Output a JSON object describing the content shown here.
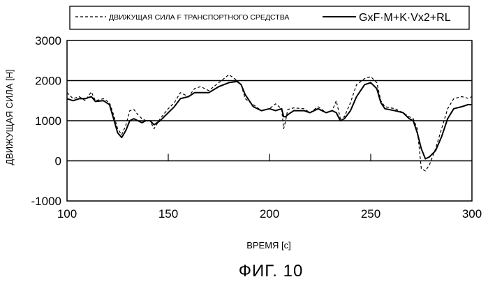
{
  "figure": {
    "caption": "ФИГ. 10"
  },
  "chart_data": {
    "type": "line",
    "xlabel": "ВРЕМЯ [с]",
    "ylabel": "ДВИЖУЩАЯ СИЛА [Н]",
    "xlim": [
      100,
      300
    ],
    "ylim": [
      -1000,
      3000
    ],
    "x_ticks": [
      "100",
      "150",
      "200",
      "250",
      "300"
    ],
    "y_ticks": [
      "3000",
      "2000",
      "1000",
      "0",
      "-1000"
    ],
    "grid_y": true,
    "legend_position": "top",
    "series": [
      {
        "name": "ДВИЖУЩАЯ СИЛА F ТРАНСПОРТНОГО СРЕДСТВА",
        "style": "dashed",
        "points": [
          [
            100,
            1700
          ],
          [
            103,
            1550
          ],
          [
            106,
            1600
          ],
          [
            109,
            1500
          ],
          [
            112,
            1720
          ],
          [
            114,
            1500
          ],
          [
            118,
            1550
          ],
          [
            121,
            1450
          ],
          [
            123,
            1150
          ],
          [
            125,
            800
          ],
          [
            127,
            650
          ],
          [
            129,
            880
          ],
          [
            131,
            1250
          ],
          [
            133,
            1280
          ],
          [
            135,
            1150
          ],
          [
            137,
            1050
          ],
          [
            139,
            1000
          ],
          [
            141,
            1000
          ],
          [
            143,
            800
          ],
          [
            146,
            1050
          ],
          [
            150,
            1300
          ],
          [
            153,
            1450
          ],
          [
            156,
            1700
          ],
          [
            160,
            1600
          ],
          [
            163,
            1800
          ],
          [
            166,
            1850
          ],
          [
            170,
            1750
          ],
          [
            175,
            1950
          ],
          [
            180,
            2150
          ],
          [
            184,
            2000
          ],
          [
            186,
            1900
          ],
          [
            188,
            1550
          ],
          [
            192,
            1400
          ],
          [
            196,
            1250
          ],
          [
            200,
            1300
          ],
          [
            203,
            1420
          ],
          [
            206,
            1300
          ],
          [
            207,
            800
          ],
          [
            208,
            1000
          ],
          [
            209,
            1280
          ],
          [
            212,
            1320
          ],
          [
            217,
            1300
          ],
          [
            220,
            1200
          ],
          [
            224,
            1350
          ],
          [
            228,
            1200
          ],
          [
            231,
            1250
          ],
          [
            233,
            1500
          ],
          [
            235,
            1050
          ],
          [
            237,
            1100
          ],
          [
            240,
            1450
          ],
          [
            243,
            1900
          ],
          [
            247,
            2050
          ],
          [
            250,
            2100
          ],
          [
            253,
            1950
          ],
          [
            255,
            1500
          ],
          [
            257,
            1350
          ],
          [
            262,
            1300
          ],
          [
            266,
            1200
          ],
          [
            269,
            1100
          ],
          [
            271,
            1050
          ],
          [
            273,
            800
          ],
          [
            275,
            -200
          ],
          [
            277,
            -250
          ],
          [
            279,
            -100
          ],
          [
            282,
            300
          ],
          [
            285,
            800
          ],
          [
            288,
            1300
          ],
          [
            291,
            1550
          ],
          [
            295,
            1600
          ],
          [
            298,
            1560
          ],
          [
            300,
            1600
          ]
        ]
      },
      {
        "name": "GxF·M+K·Vx2+RL",
        "style": "solid",
        "points": [
          [
            100,
            1550
          ],
          [
            103,
            1500
          ],
          [
            106,
            1550
          ],
          [
            109,
            1550
          ],
          [
            112,
            1600
          ],
          [
            114,
            1480
          ],
          [
            118,
            1500
          ],
          [
            121,
            1400
          ],
          [
            123,
            1050
          ],
          [
            125,
            700
          ],
          [
            127,
            580
          ],
          [
            129,
            750
          ],
          [
            131,
            1000
          ],
          [
            133,
            1050
          ],
          [
            135,
            1000
          ],
          [
            137,
            950
          ],
          [
            139,
            1000
          ],
          [
            141,
            1000
          ],
          [
            143,
            900
          ],
          [
            146,
            1000
          ],
          [
            150,
            1200
          ],
          [
            153,
            1350
          ],
          [
            156,
            1550
          ],
          [
            160,
            1600
          ],
          [
            163,
            1700
          ],
          [
            166,
            1700
          ],
          [
            170,
            1700
          ],
          [
            175,
            1850
          ],
          [
            180,
            1950
          ],
          [
            184,
            1980
          ],
          [
            186,
            1900
          ],
          [
            188,
            1650
          ],
          [
            192,
            1350
          ],
          [
            196,
            1250
          ],
          [
            200,
            1300
          ],
          [
            203,
            1250
          ],
          [
            206,
            1300
          ],
          [
            207,
            1100
          ],
          [
            208,
            1100
          ],
          [
            209,
            1150
          ],
          [
            212,
            1250
          ],
          [
            217,
            1250
          ],
          [
            220,
            1200
          ],
          [
            224,
            1300
          ],
          [
            228,
            1200
          ],
          [
            231,
            1250
          ],
          [
            233,
            1200
          ],
          [
            235,
            1000
          ],
          [
            237,
            1050
          ],
          [
            240,
            1250
          ],
          [
            243,
            1600
          ],
          [
            247,
            1900
          ],
          [
            250,
            1950
          ],
          [
            253,
            1800
          ],
          [
            255,
            1450
          ],
          [
            257,
            1300
          ],
          [
            262,
            1250
          ],
          [
            266,
            1200
          ],
          [
            269,
            1050
          ],
          [
            271,
            1000
          ],
          [
            273,
            700
          ],
          [
            275,
            300
          ],
          [
            277,
            50
          ],
          [
            279,
            100
          ],
          [
            282,
            250
          ],
          [
            285,
            600
          ],
          [
            288,
            1050
          ],
          [
            291,
            1300
          ],
          [
            295,
            1350
          ],
          [
            298,
            1400
          ],
          [
            300,
            1400
          ]
        ]
      }
    ]
  }
}
